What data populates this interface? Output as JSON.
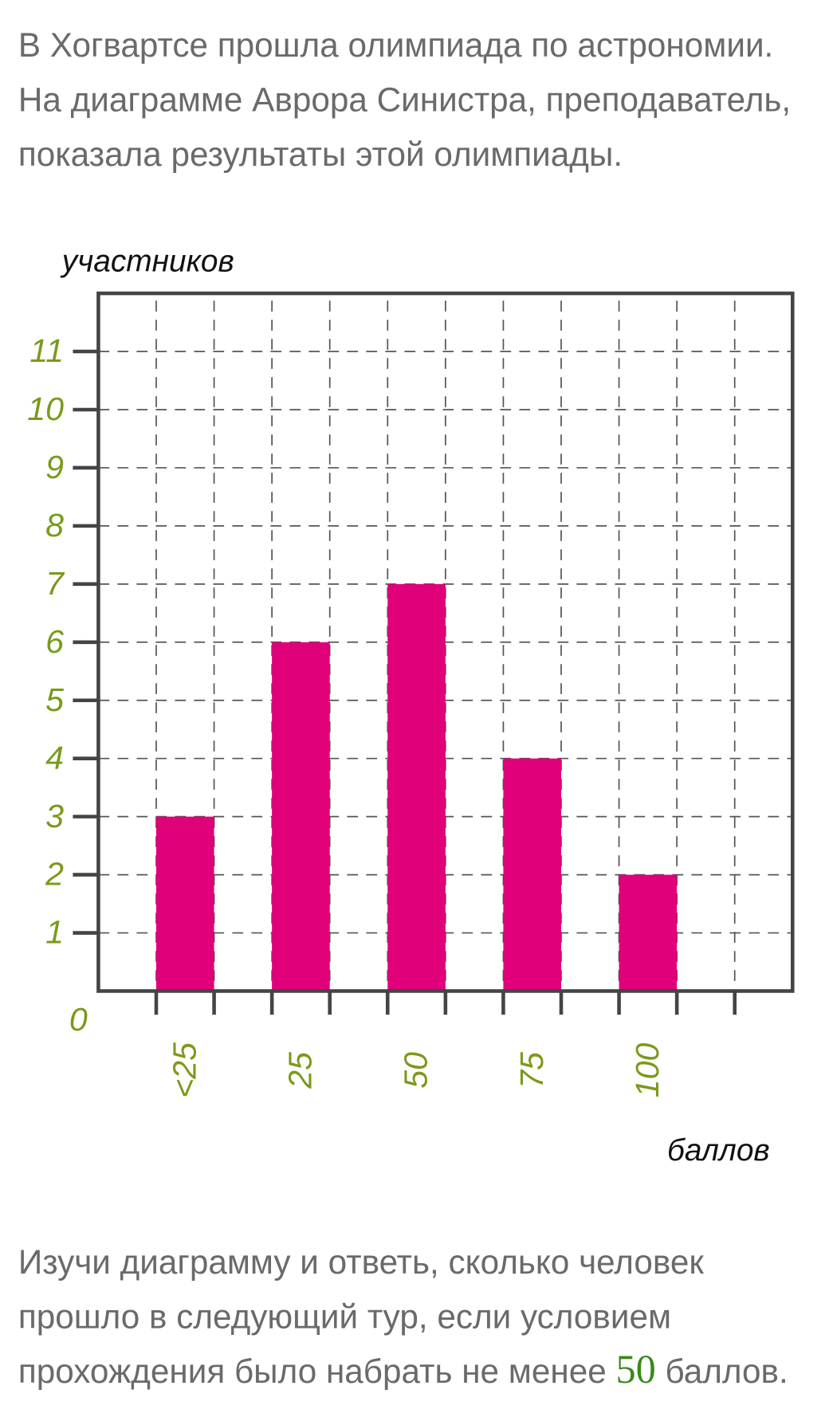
{
  "intro": [
    "В Хогвартсе прошла олимпиада по астрономии.",
    "На диаграмме Аврора Синистра, преподаватель,",
    "показала результаты этой олимпиады."
  ],
  "chart_data": {
    "type": "bar",
    "y_label": "участников",
    "x_label": "баллов",
    "categories": [
      "<25",
      "25",
      "50",
      "75",
      "100"
    ],
    "values": [
      3,
      6,
      7,
      4,
      2
    ],
    "color": "#e0007a",
    "ylim": [
      0,
      12
    ],
    "yticks": [
      0,
      1,
      2,
      3,
      4,
      5,
      6,
      7,
      8,
      9,
      10,
      11
    ],
    "grid": true
  },
  "question": {
    "lines": [
      "Изучи диаграмму и ответь, сколько человек",
      "прошло в следующий тур, если условием",
      "прохождения было набрать не менее "
    ],
    "number": "50",
    "tail": " баллов."
  }
}
